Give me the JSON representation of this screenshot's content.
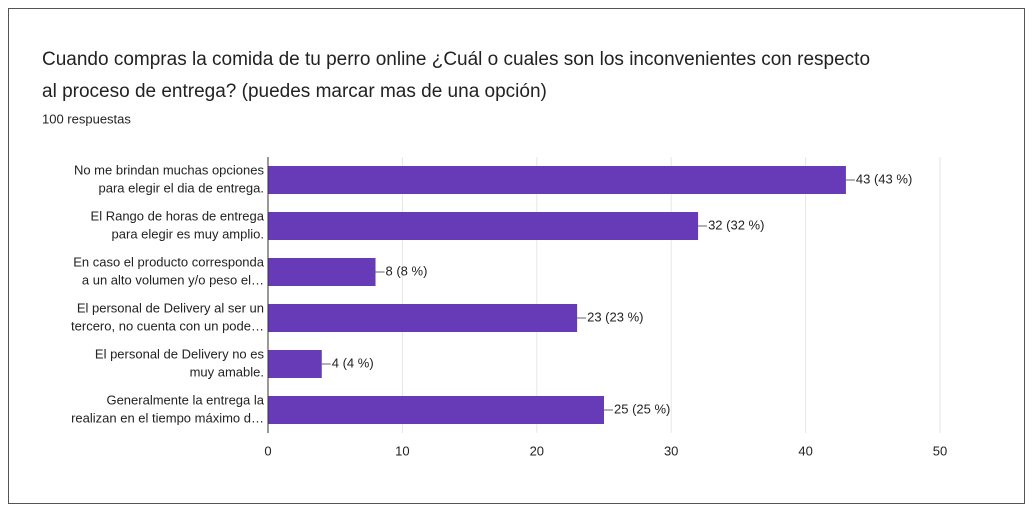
{
  "chart_data": {
    "type": "bar",
    "orientation": "horizontal",
    "title": [
      "Cuando compras la comida de tu perro online ¿Cuál o cuales son los inconvenientes con respecto",
      "al proceso de entrega? (puedes marcar mas de una opción)"
    ],
    "subtitle": "100 respuestas",
    "categories": [
      [
        "No me brindan muchas opciones",
        "para elegir el dia de entrega."
      ],
      [
        "El Rango de horas de entrega",
        "para elegir es muy amplio."
      ],
      [
        "En caso el producto corresponda",
        "a un alto volumen y/o peso el…"
      ],
      [
        "El personal de Delivery al ser un",
        "tercero, no cuenta con un pode…"
      ],
      [
        "El personal de Delivery no es",
        "muy amable."
      ],
      [
        "Generalmente la entrega la",
        "realizan en el tiempo máximo d…"
      ]
    ],
    "values": [
      43,
      32,
      8,
      23,
      4,
      25
    ],
    "value_labels": [
      "43 (43 %)",
      "32 (32 %)",
      "8 (8 %)",
      "23 (23 %)",
      "4 (4 %)",
      "25 (25 %)"
    ],
    "color": "#673ab7",
    "xlim": [
      0,
      50
    ],
    "xticks": [
      0,
      10,
      20,
      30,
      40,
      50
    ],
    "grid": true
  }
}
